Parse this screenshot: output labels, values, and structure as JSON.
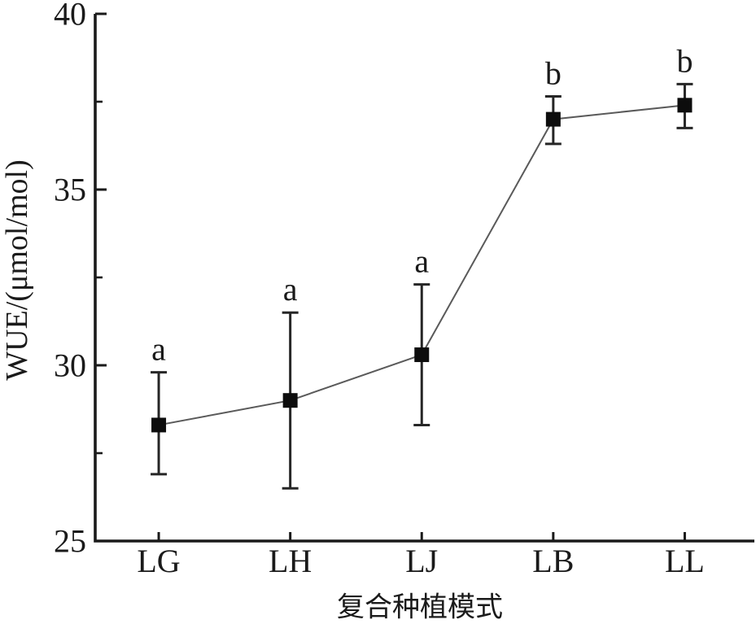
{
  "chart_data": {
    "type": "line",
    "title": "",
    "xlabel": "复合种植模式",
    "ylabel": "WUE/(μmol/mol)",
    "categories": [
      "LG",
      "LH",
      "LJ",
      "LB",
      "LL"
    ],
    "series": [
      {
        "name": "WUE",
        "values": [
          28.3,
          29.0,
          30.3,
          37.0,
          37.4
        ],
        "error_upper": [
          29.8,
          31.5,
          32.3,
          37.65,
          38.0
        ],
        "error_lower": [
          26.9,
          26.5,
          28.3,
          36.3,
          36.75
        ],
        "point_labels": [
          "a",
          "a",
          "a",
          "b",
          "b"
        ]
      }
    ],
    "ylim": [
      25,
      40
    ],
    "y_major_ticks": [
      25,
      30,
      35,
      40
    ],
    "y_minor_ticks": [
      27.5,
      32.5,
      37.5
    ],
    "grid": false,
    "legend": "none",
    "marker": "filled-square",
    "colors": {
      "marker": "#0d0d0d",
      "line": "#5a5a5a",
      "error_bar": "#262626",
      "axis": "#1a1a1a",
      "text": "#1a1a1a",
      "background": "#ffffff"
    }
  }
}
